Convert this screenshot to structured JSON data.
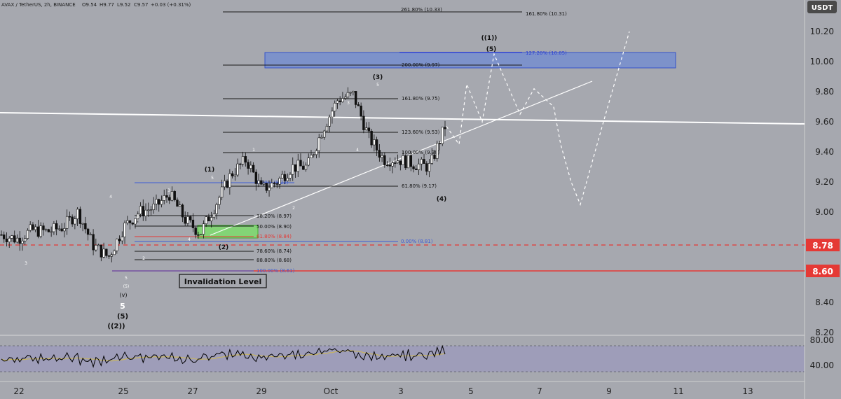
{
  "header": {
    "symbol": "AVAX / TetherUS, 2h, BINANCE",
    "open": "O9.54",
    "high": "H9.77",
    "low": "L9.52",
    "close": "C9.57",
    "change": "+0.03 (+0.31%)"
  },
  "currency_badge": "USDT",
  "colors": {
    "background": "#a6a8af",
    "candle": "#111111",
    "red_line": "#e53935",
    "target_zone": "#5b7fe0",
    "support_zone": "#7ddc6c",
    "rsi_panel": "#9c9bbb",
    "rsi_line": "#000000",
    "rsi_ma": "#c8b560",
    "projection": "#ffffff"
  },
  "chart_data": {
    "type": "line",
    "title": "",
    "xlabel": "",
    "ylabel": "",
    "ylim": [
      8.2,
      10.31
    ],
    "y_ticks": [
      "10.20",
      "10.00",
      "9.80",
      "9.60",
      "9.40",
      "9.20",
      "9.00",
      "8.80",
      "8.40",
      "8.20"
    ],
    "x_ticks": [
      "22",
      "25",
      "27",
      "29",
      "Oct",
      "3",
      "5",
      "7",
      "9",
      "11",
      "13"
    ],
    "price_badges": [
      {
        "value": "8.78",
        "color": "#e53935"
      },
      {
        "value": "8.60",
        "color": "#e53935"
      }
    ],
    "series": [
      {
        "x": [
          "22",
          "22.5",
          "23",
          "23.5",
          "24",
          "24.5",
          "25",
          "25.5",
          "26",
          "26.5",
          "27",
          "27.3",
          "27.5",
          "27.8",
          "28",
          "28.5",
          "29",
          "29.5",
          "30",
          "30.5",
          "Oct",
          "Oct 1.5",
          "2",
          "2.3",
          "2.6",
          "3",
          "3.3",
          "3.6",
          "4",
          "4.3"
        ],
        "values": [
          8.85,
          8.82,
          8.88,
          8.87,
          8.9,
          9.0,
          8.78,
          8.7,
          8.9,
          9.0,
          9.03,
          9.12,
          8.95,
          8.86,
          9.05,
          9.25,
          9.35,
          9.15,
          9.2,
          9.3,
          9.3,
          9.55,
          9.75,
          9.78,
          9.5,
          9.35,
          9.35,
          9.32,
          9.3,
          9.57
        ]
      }
    ],
    "projection": {
      "x": [
        "4.3",
        "4.5",
        "4.7",
        "5",
        "5.3",
        "5.7",
        "6.2",
        "6.7",
        "7",
        "7.5",
        "8.2",
        "8.8",
        "9.3"
      ],
      "values": [
        9.57,
        9.45,
        9.85,
        9.6,
        10.05,
        9.65,
        9.82,
        9.7,
        9.45,
        9.2,
        9.05,
        9.55,
        10.2
      ]
    },
    "rsi": {
      "ticks": [
        "80.00",
        "40.00"
      ]
    },
    "fib_levels": [
      {
        "label": "261.80% (10.33)",
        "price": 10.33
      },
      {
        "label": "161.80% (10.31)",
        "price": 10.31
      },
      {
        "label": "127.20% (10.05)",
        "price": 10.05
      },
      {
        "label": "200.00% (9.97)",
        "price": 9.97
      },
      {
        "label": "161.80% (9.75)",
        "price": 9.75
      },
      {
        "label": "123.60% (9.53)",
        "price": 9.53
      },
      {
        "label": "100.00% (9.38)",
        "price": 9.38
      },
      {
        "label": "61.80% (9.17)",
        "price": 9.17
      },
      {
        "label": "0.00% (9.22)",
        "price": 9.22
      },
      {
        "label": "38.20% (8.97)",
        "price": 8.97
      },
      {
        "label": "50.00% (8.90)",
        "price": 8.9
      },
      {
        "label": "61.80% (8.84)",
        "price": 8.84
      },
      {
        "label": "0.00% (8.81)",
        "price": 8.81
      },
      {
        "label": "78.60% (8.74)",
        "price": 8.74
      },
      {
        "label": "88.80% (8.68)",
        "price": 8.68
      },
      {
        "label": "100.00% (8.61)",
        "price": 8.61
      }
    ],
    "wave_labels": [
      "((1))",
      "(5)",
      "(3)",
      "5",
      "3",
      "4",
      "(4)",
      "1",
      "2",
      "(1)",
      "5",
      "4",
      "3",
      "1",
      "4",
      "(2)",
      "2",
      "3",
      "5",
      "(5)",
      "(v)",
      "5",
      "(5)",
      "((2))"
    ],
    "annotation": "Invalidation Level"
  }
}
